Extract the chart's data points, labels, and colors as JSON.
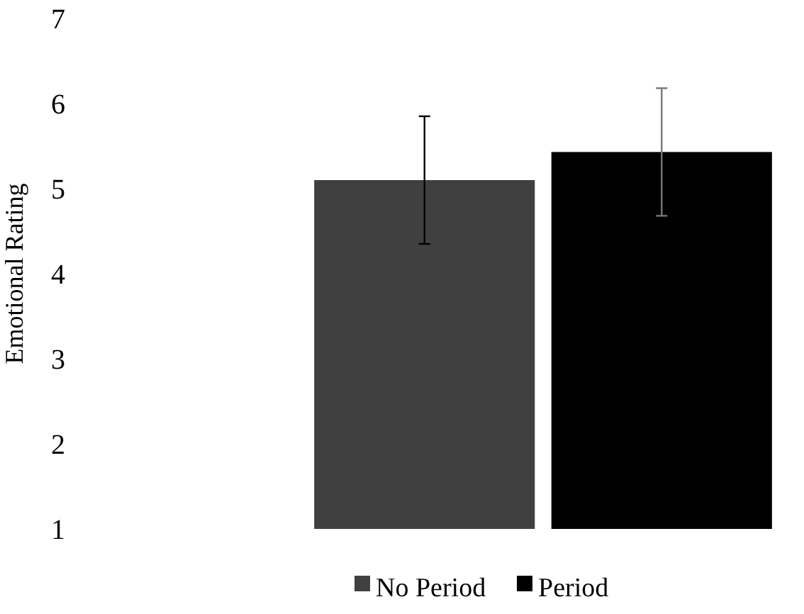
{
  "chart_data": {
    "type": "bar",
    "ylabel": "Emotional Rating",
    "categories": [
      null
    ],
    "series": [
      {
        "name": "No Period",
        "color": "#404040",
        "values": [
          5.1
        ],
        "errors": [
          0.75
        ]
      },
      {
        "name": "Period",
        "color": "#000000",
        "values": [
          5.43
        ],
        "errors": [
          0.75
        ]
      }
    ],
    "ylim": [
      1,
      7
    ],
    "yticks": [
      1,
      2,
      3,
      4,
      5,
      6,
      7
    ],
    "legend": "bottom",
    "grid": false
  }
}
